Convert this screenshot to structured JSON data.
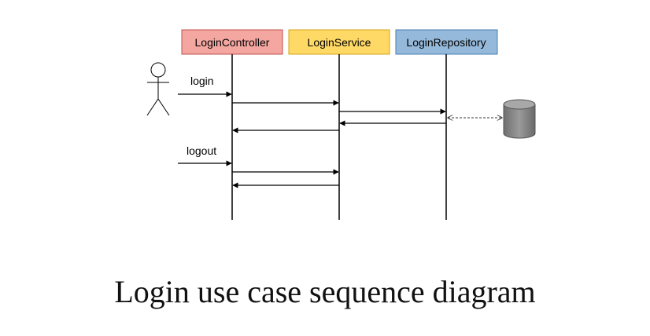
{
  "participants": [
    {
      "name": "LoginController",
      "fill": "#f4a6a0",
      "stroke": "#c0504d"
    },
    {
      "name": "LoginService",
      "fill": "#ffd966",
      "stroke": "#d6a416"
    },
    {
      "name": "LoginRepository",
      "fill": "#95b9da",
      "stroke": "#4a7eb0"
    }
  ],
  "messages": {
    "login": "login",
    "logout": "logout"
  },
  "caption": "Login use case sequence diagram",
  "colors": {
    "database": "#808080",
    "lines": "#000000"
  }
}
